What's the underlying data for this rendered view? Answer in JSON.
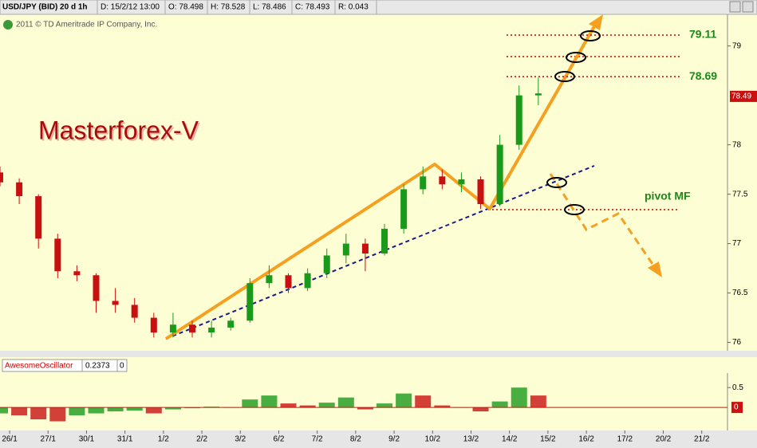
{
  "header": {
    "symbol": "USD/JPY (BID) 20 d 1h",
    "date": "D: 15/2/12 13:00",
    "open": "O: 78.498",
    "high": "H: 78.528",
    "low": "L: 78.486",
    "close": "C: 78.493",
    "range": "R: 0.043"
  },
  "copyright": "2011 © TD Ameritrade IP Company, Inc.",
  "chart_data": [
    {
      "type": "candlestick",
      "title": "Masterforex-V",
      "x": [
        -0.25,
        0.25,
        0.75,
        1.25,
        1.75,
        2.25,
        2.75,
        3.25,
        3.75,
        4.25,
        4.75,
        5.25,
        5.75,
        6.25,
        6.75,
        7.25,
        7.75,
        8.25,
        8.75,
        9.25,
        9.75,
        10.25,
        10.75,
        11.25,
        11.75,
        12.25,
        12.75,
        13.25,
        13.75
      ],
      "open": [
        77.72,
        77.62,
        77.48,
        77.05,
        76.72,
        76.68,
        76.42,
        76.38,
        76.25,
        76.1,
        76.18,
        76.1,
        76.15,
        76.22,
        76.6,
        76.68,
        76.55,
        76.7,
        76.88,
        77.0,
        76.9,
        77.15,
        77.55,
        77.68,
        77.6,
        77.65,
        77.4,
        78.0,
        78.5
      ],
      "high": [
        77.78,
        77.66,
        77.5,
        77.1,
        76.78,
        76.7,
        76.55,
        76.45,
        76.3,
        76.3,
        76.22,
        76.22,
        76.25,
        76.65,
        76.78,
        76.7,
        76.75,
        76.95,
        77.1,
        77.05,
        77.2,
        77.6,
        77.78,
        77.75,
        77.72,
        77.68,
        78.1,
        78.6,
        78.68
      ],
      "low": [
        77.58,
        77.4,
        76.95,
        76.65,
        76.62,
        76.3,
        76.3,
        76.2,
        76.05,
        76.05,
        76.05,
        76.05,
        76.12,
        76.2,
        76.55,
        76.5,
        76.52,
        76.65,
        76.8,
        76.72,
        76.88,
        77.1,
        77.5,
        77.55,
        77.52,
        77.35,
        77.38,
        77.95,
        78.4
      ],
      "close": [
        77.62,
        77.48,
        77.05,
        76.72,
        76.68,
        76.42,
        76.38,
        76.25,
        76.1,
        76.18,
        76.1,
        76.15,
        76.22,
        76.6,
        76.68,
        76.55,
        76.7,
        76.88,
        77.0,
        76.9,
        77.15,
        77.55,
        77.68,
        77.6,
        77.65,
        77.4,
        78.0,
        78.5,
        78.52
      ],
      "up_color": "#1a9a1a",
      "down_color": "#c81010",
      "ylim": [
        75.94,
        79.32
      ],
      "yticks": [
        76,
        76.5,
        77,
        77.5,
        78,
        79
      ],
      "xlim": [
        -0.25,
        18.67
      ],
      "xticks": [
        {
          "value": 0,
          "label": "26/1"
        },
        {
          "value": 1,
          "label": "27/1"
        },
        {
          "value": 2,
          "label": "30/1"
        },
        {
          "value": 3,
          "label": "31/1"
        },
        {
          "value": 4,
          "label": "1/2"
        },
        {
          "value": 5,
          "label": "2/2"
        },
        {
          "value": 6,
          "label": "3/2"
        },
        {
          "value": 7,
          "label": "6/2"
        },
        {
          "value": 8,
          "label": "7/2"
        },
        {
          "value": 9,
          "label": "8/2"
        },
        {
          "value": 10,
          "label": "9/2"
        },
        {
          "value": 11,
          "label": "10/2"
        },
        {
          "value": 12,
          "label": "13/2"
        },
        {
          "value": 13,
          "label": "14/2"
        },
        {
          "value": 14,
          "label": "15/2"
        },
        {
          "value": 15,
          "label": "16/2"
        },
        {
          "value": 16,
          "label": "17/2"
        },
        {
          "value": 17,
          "label": "20/2"
        },
        {
          "value": 18,
          "label": "21/2"
        }
      ],
      "levels": [
        79.11,
        78.69
      ],
      "annotation": "pivot MF",
      "last_price": 78.49
    },
    {
      "type": "bar",
      "title": "AwesomeOscillator",
      "last_value": 0.2373,
      "values": [
        -0.15,
        -0.2,
        -0.3,
        -0.35,
        -0.2,
        -0.15,
        -0.1,
        -0.08,
        -0.15,
        -0.05,
        -0.02,
        0.02,
        0.0,
        0.2,
        0.3,
        0.1,
        0.05,
        0.12,
        0.25,
        -0.05,
        0.1,
        0.35,
        0.3,
        0.05,
        0.0,
        -0.1,
        0.15,
        0.5,
        0.3
      ],
      "ylim": [
        -0.52,
        0.865
      ],
      "yticks": [
        0.5,
        0
      ],
      "zero_color": "#d01010"
    }
  ]
}
